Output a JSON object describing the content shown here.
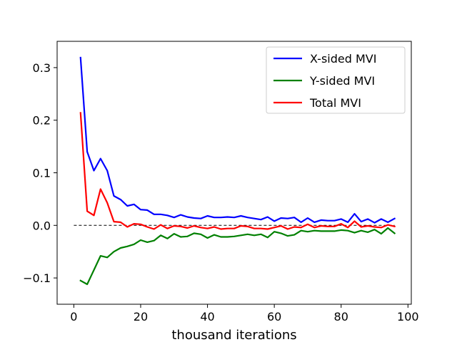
{
  "chart_data": {
    "type": "line",
    "title": "",
    "xlabel": "thousand iterations",
    "ylabel": "",
    "xlim": [
      -5,
      101
    ],
    "ylim": [
      -0.15,
      0.35
    ],
    "xticks": [
      0,
      20,
      40,
      60,
      80,
      100
    ],
    "xtick_labels": [
      "0",
      "20",
      "40",
      "60",
      "80",
      "100"
    ],
    "yticks": [
      -0.1,
      0.0,
      0.1,
      0.2,
      0.3
    ],
    "ytick_labels": [
      "−0.1",
      "0.0",
      "0.1",
      "0.2",
      "0.3"
    ],
    "grid": false,
    "legend_position": "top-right",
    "reference_line": {
      "y": 0.0,
      "x_range": [
        0,
        96
      ],
      "style": "dashed",
      "color": "#000000"
    },
    "x": [
      2,
      4,
      6,
      8,
      10,
      12,
      14,
      16,
      18,
      20,
      22,
      24,
      26,
      28,
      30,
      32,
      34,
      36,
      38,
      40,
      42,
      44,
      46,
      48,
      50,
      52,
      54,
      56,
      58,
      60,
      62,
      64,
      66,
      68,
      70,
      72,
      74,
      76,
      78,
      80,
      82,
      84,
      86,
      88,
      90,
      92,
      94,
      96
    ],
    "series": [
      {
        "name": "X-sided MVI",
        "color": "#0000ff",
        "values": [
          0.319,
          0.14,
          0.104,
          0.127,
          0.104,
          0.056,
          0.049,
          0.037,
          0.04,
          0.03,
          0.029,
          0.021,
          0.021,
          0.019,
          0.015,
          0.02,
          0.016,
          0.014,
          0.013,
          0.018,
          0.015,
          0.015,
          0.016,
          0.015,
          0.018,
          0.015,
          0.013,
          0.011,
          0.016,
          0.008,
          0.014,
          0.013,
          0.015,
          0.006,
          0.014,
          0.006,
          0.01,
          0.009,
          0.009,
          0.012,
          0.006,
          0.022,
          0.007,
          0.012,
          0.005,
          0.012,
          0.006,
          0.013
        ]
      },
      {
        "name": "Y-sided MVI",
        "color": "#008000",
        "values": [
          -0.105,
          -0.112,
          -0.085,
          -0.058,
          -0.061,
          -0.05,
          -0.043,
          -0.04,
          -0.036,
          -0.028,
          -0.032,
          -0.029,
          -0.019,
          -0.025,
          -0.016,
          -0.022,
          -0.021,
          -0.015,
          -0.017,
          -0.024,
          -0.018,
          -0.022,
          -0.022,
          -0.021,
          -0.019,
          -0.017,
          -0.019,
          -0.017,
          -0.023,
          -0.012,
          -0.015,
          -0.02,
          -0.018,
          -0.01,
          -0.012,
          -0.01,
          -0.011,
          -0.011,
          -0.011,
          -0.009,
          -0.01,
          -0.014,
          -0.01,
          -0.013,
          -0.008,
          -0.016,
          -0.005,
          -0.015
        ]
      },
      {
        "name": "Total MVI",
        "color": "#ff0000",
        "values": [
          0.214,
          0.027,
          0.019,
          0.069,
          0.043,
          0.007,
          0.006,
          -0.003,
          0.003,
          0.002,
          -0.003,
          -0.007,
          0.001,
          -0.006,
          -0.001,
          -0.002,
          -0.005,
          -0.001,
          -0.004,
          -0.006,
          -0.003,
          -0.007,
          -0.006,
          -0.006,
          -0.001,
          -0.002,
          -0.006,
          -0.006,
          -0.007,
          -0.004,
          -0.001,
          -0.007,
          -0.003,
          -0.004,
          0.002,
          -0.004,
          -0.001,
          -0.002,
          -0.002,
          0.003,
          -0.004,
          0.008,
          -0.003,
          -0.001,
          -0.003,
          -0.004,
          0.001,
          -0.002
        ]
      }
    ]
  }
}
